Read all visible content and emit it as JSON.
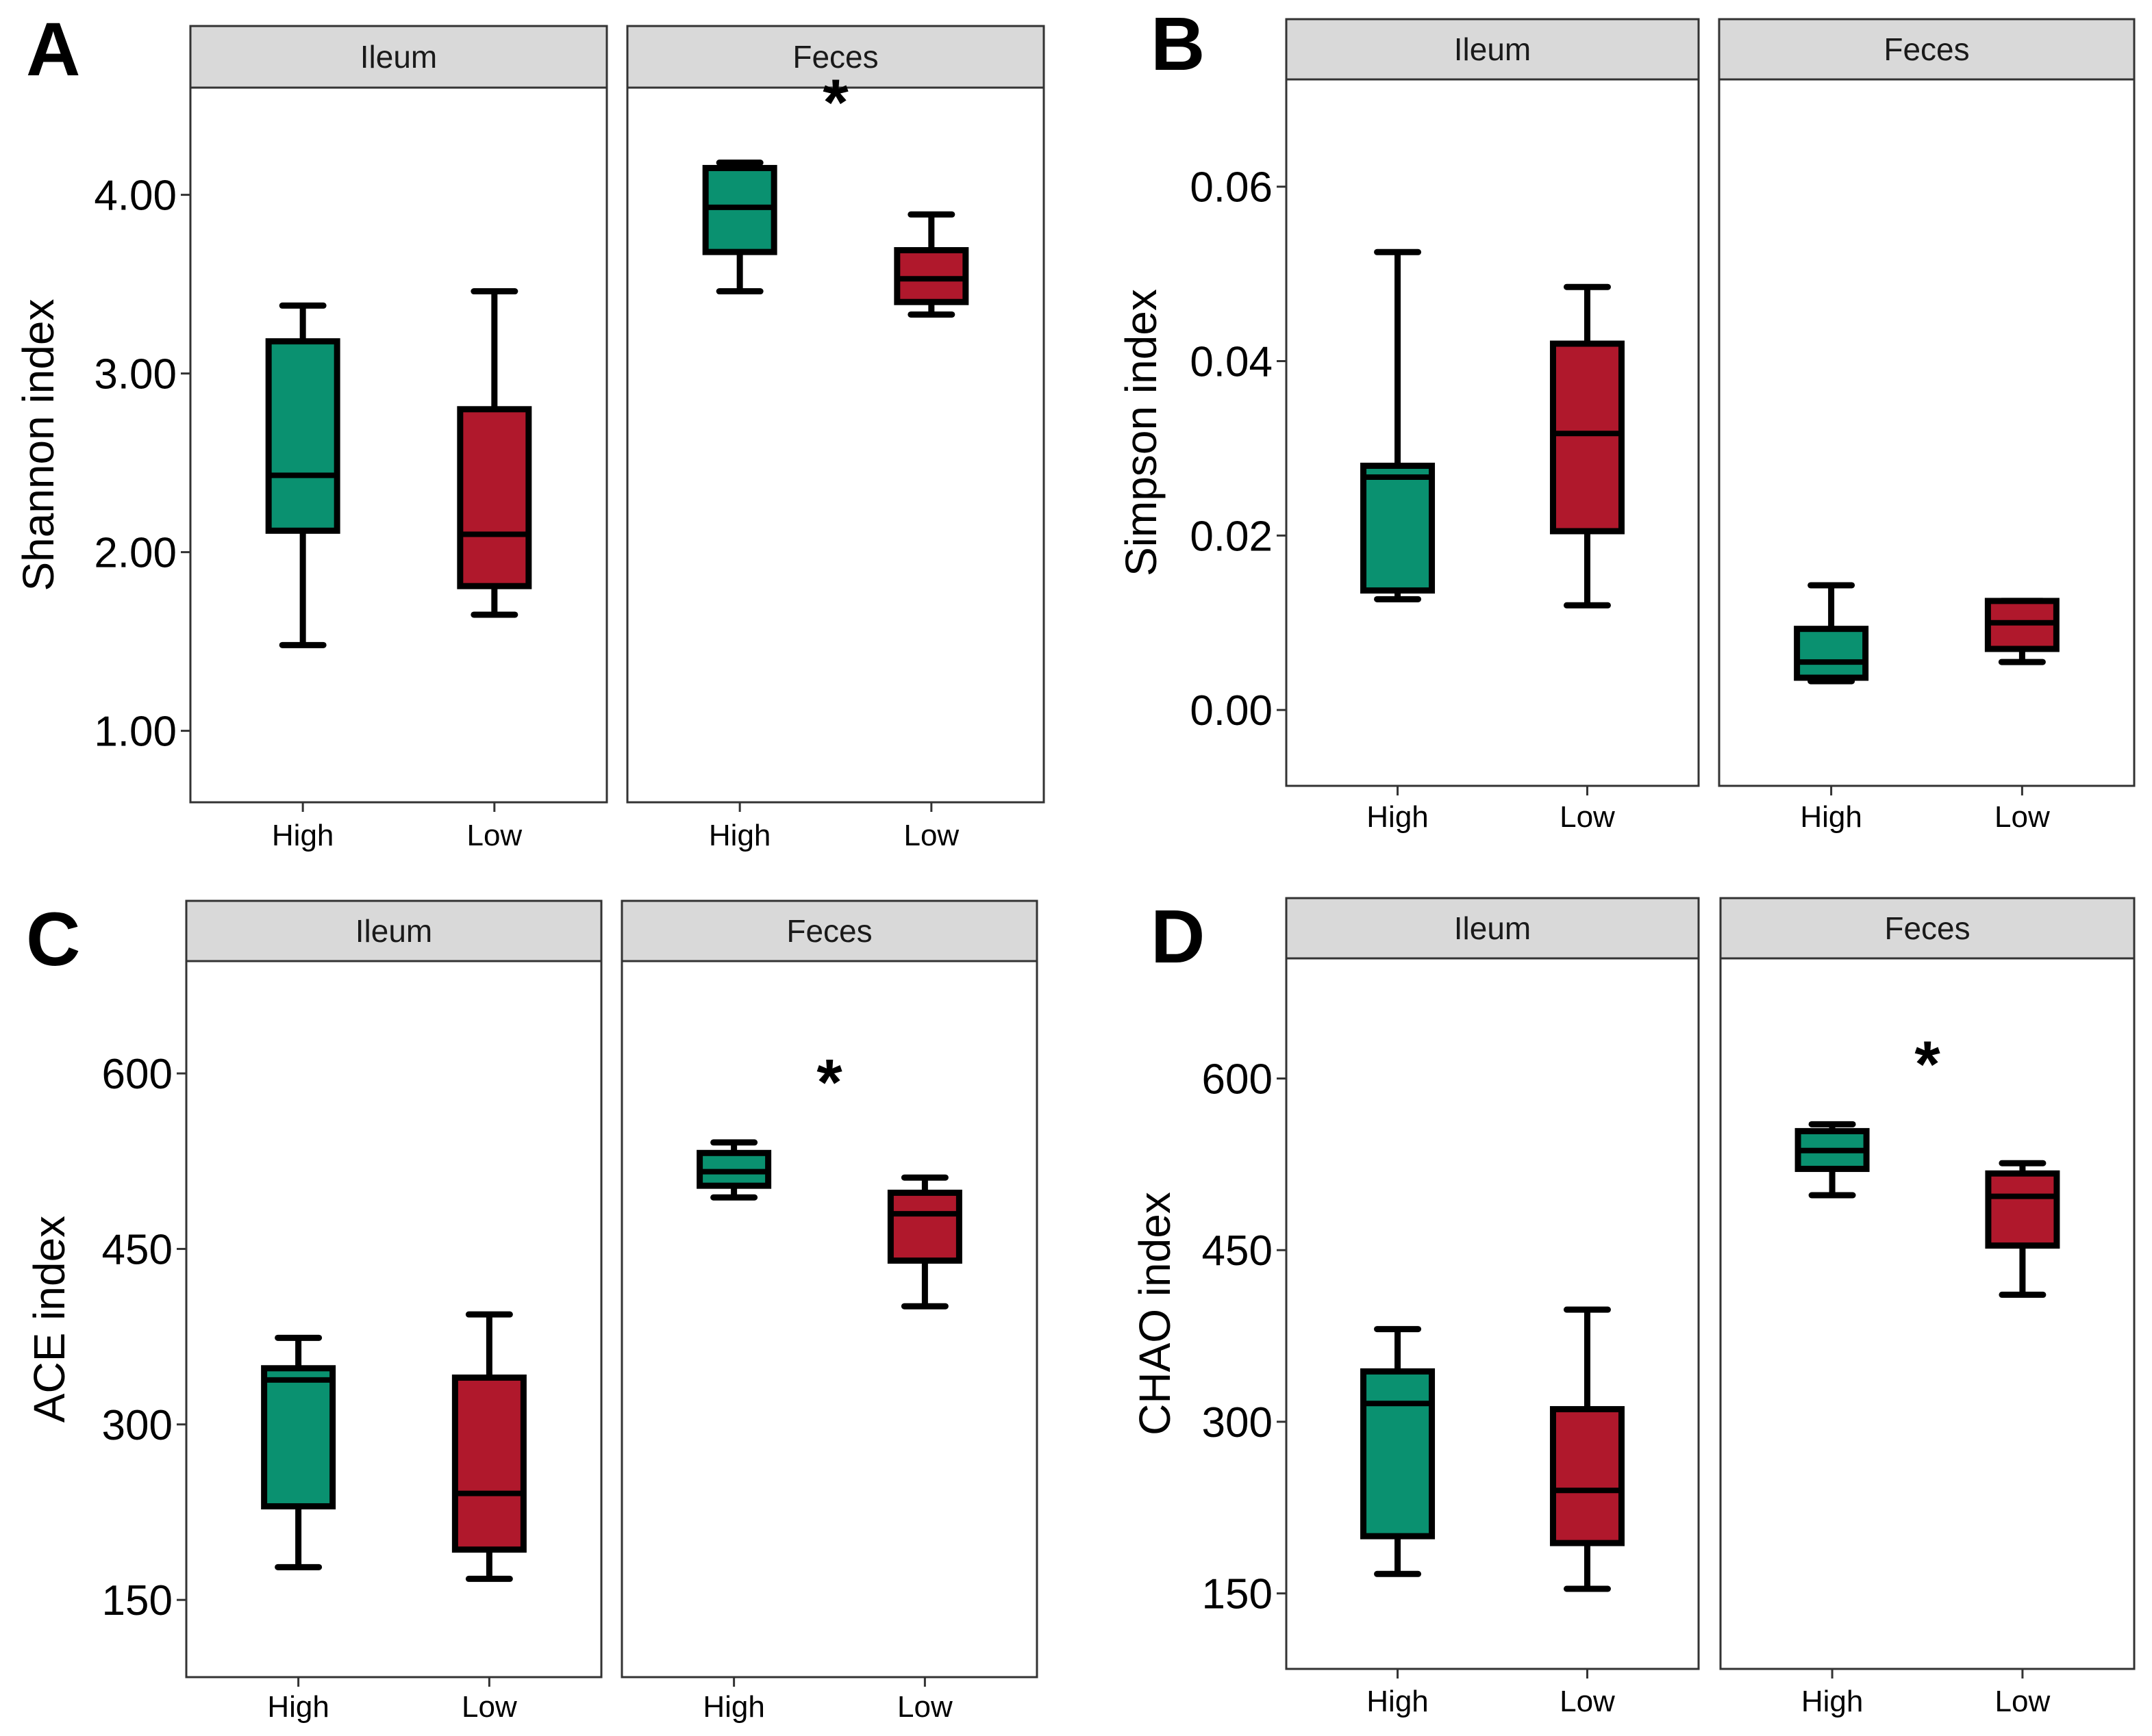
{
  "colors": {
    "High": "#0a9170",
    "Low": "#b0182c",
    "strip": "#d9d9d9",
    "frame": "#333333",
    "outline": "#000000"
  },
  "chart_data": [
    {
      "panel": "A",
      "type": "box",
      "ylabel": "Shannon index",
      "ylim": [
        0.6,
        4.6
      ],
      "yticks": [
        1,
        2,
        3,
        4
      ],
      "ytick_labels": [
        "1.00",
        "2.00",
        "3.00",
        "4.00"
      ],
      "categories": [
        "High",
        "Low"
      ],
      "facets": [
        {
          "label": "Ileum",
          "significance": "",
          "boxes": [
            {
              "group": "High",
              "min": 1.48,
              "q1": 2.12,
              "median": 2.43,
              "q3": 3.18,
              "max": 3.38
            },
            {
              "group": "Low",
              "min": 1.65,
              "q1": 1.81,
              "median": 2.1,
              "q3": 2.8,
              "max": 3.46
            }
          ]
        },
        {
          "label": "Feces",
          "significance": "*",
          "boxes": [
            {
              "group": "High",
              "min": 3.46,
              "q1": 3.68,
              "median": 3.93,
              "q3": 4.15,
              "max": 4.18
            },
            {
              "group": "Low",
              "min": 3.33,
              "q1": 3.4,
              "median": 3.53,
              "q3": 3.69,
              "max": 3.89
            }
          ]
        }
      ]
    },
    {
      "panel": "B",
      "type": "box",
      "ylabel": "Simpson index",
      "ylim": [
        -0.0087,
        0.0723
      ],
      "yticks": [
        0,
        0.02,
        0.04,
        0.06
      ],
      "ytick_labels": [
        "0.00",
        "0.02",
        "0.04",
        "0.06"
      ],
      "categories": [
        "High",
        "Low"
      ],
      "facets": [
        {
          "label": "Ileum",
          "significance": "",
          "boxes": [
            {
              "group": "High",
              "min": 0.0127,
              "q1": 0.0137,
              "median": 0.0267,
              "q3": 0.028,
              "max": 0.0525
            },
            {
              "group": "Low",
              "min": 0.012,
              "q1": 0.0205,
              "median": 0.0317,
              "q3": 0.042,
              "max": 0.0485
            }
          ]
        },
        {
          "label": "Feces",
          "significance": "",
          "boxes": [
            {
              "group": "High",
              "min": 0.0033,
              "q1": 0.0037,
              "median": 0.0055,
              "q3": 0.0093,
              "max": 0.0143
            },
            {
              "group": "Low",
              "min": 0.0055,
              "q1": 0.007,
              "median": 0.01,
              "q3": 0.0125,
              "max": 0.0125
            }
          ]
        }
      ]
    },
    {
      "panel": "C",
      "type": "box",
      "ylabel": "ACE index",
      "ylim": [
        84,
        696
      ],
      "yticks": [
        150,
        300,
        450,
        600
      ],
      "ytick_labels": [
        "150",
        "300",
        "450",
        "600"
      ],
      "categories": [
        "High",
        "Low"
      ],
      "facets": [
        {
          "label": "Ileum",
          "significance": "",
          "boxes": [
            {
              "group": "High",
              "min": 178,
              "q1": 230,
              "median": 338,
              "q3": 348,
              "max": 374
            },
            {
              "group": "Low",
              "min": 168,
              "q1": 193,
              "median": 241,
              "q3": 340,
              "max": 394
            }
          ]
        },
        {
          "label": "Feces",
          "significance": "*",
          "boxes": [
            {
              "group": "High",
              "min": 494,
              "q1": 504,
              "median": 516,
              "q3": 532,
              "max": 541
            },
            {
              "group": "Low",
              "min": 401,
              "q1": 440,
              "median": 480,
              "q3": 498,
              "max": 511
            }
          ]
        }
      ]
    },
    {
      "panel": "D",
      "type": "box",
      "ylabel": "CHAO index",
      "ylim": [
        84,
        705
      ],
      "yticks": [
        150,
        300,
        450,
        600
      ],
      "ytick_labels": [
        "150",
        "300",
        "450",
        "600"
      ],
      "categories": [
        "High",
        "Low"
      ],
      "facets": [
        {
          "label": "Ileum",
          "significance": "",
          "boxes": [
            {
              "group": "High",
              "min": 167,
              "q1": 200,
              "median": 316,
              "q3": 344,
              "max": 381
            },
            {
              "group": "Low",
              "min": 154,
              "q1": 194,
              "median": 240,
              "q3": 311,
              "max": 398
            }
          ]
        },
        {
          "label": "Feces",
          "significance": "*",
          "boxes": [
            {
              "group": "High",
              "min": 498,
              "q1": 521,
              "median": 537,
              "q3": 554,
              "max": 560
            },
            {
              "group": "Low",
              "min": 411,
              "q1": 454,
              "median": 497,
              "q3": 517,
              "max": 526
            }
          ]
        }
      ]
    }
  ]
}
